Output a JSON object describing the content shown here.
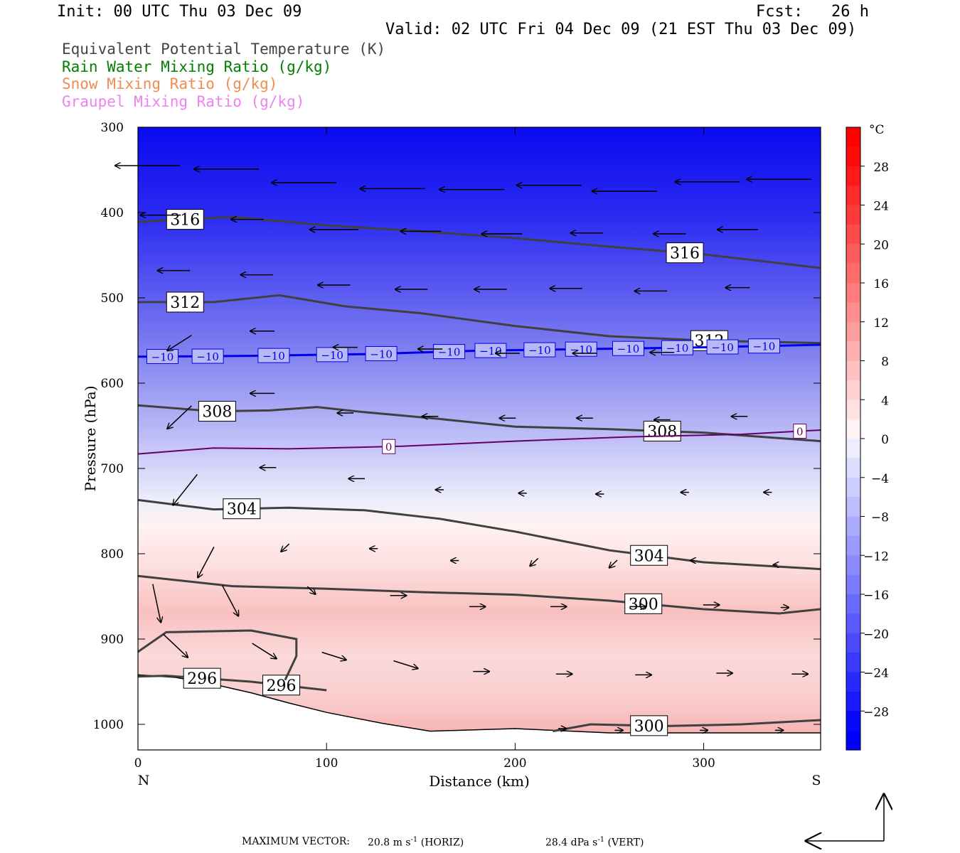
{
  "header": {
    "init": "Init: 00 UTC Thu 03 Dec 09",
    "fcst": "Fcst:   26 h",
    "valid": "Valid: 02 UTC Fri 04 Dec 09 (21 EST Thu 03 Dec 09)"
  },
  "legend": [
    {
      "label": "Equivalent Potential Temperature (K)",
      "color": "#444444"
    },
    {
      "label": "Rain Water Mixing Ratio (g/kg)",
      "color": "#008000"
    },
    {
      "label": "Snow Mixing Ratio (g/kg)",
      "color": "#f08c50"
    },
    {
      "label": "Graupel Mixing Ratio (g/kg)",
      "color": "#ee82ee"
    }
  ],
  "chart_data": {
    "type": "cross-section",
    "xlabel": "Distance (km)",
    "ylabel": "Pressure (hPa)",
    "xlim": [
      0,
      362
    ],
    "ylim": [
      1030,
      300
    ],
    "x_ticks": [
      0,
      100,
      200,
      300
    ],
    "y_ticks": [
      300,
      400,
      500,
      600,
      700,
      800,
      900,
      1000
    ],
    "endpoint_labels": {
      "left": "N",
      "right": "S"
    },
    "colorbar": {
      "unit": "°C",
      "range": [
        -32,
        32
      ],
      "ticks": [
        28,
        24,
        20,
        16,
        12,
        8,
        4,
        0,
        -4,
        -8,
        -12,
        -16,
        -20,
        -24,
        -28
      ]
    },
    "theta_e_contours": [
      {
        "value": 316,
        "label_x": [
          25,
          290
        ],
        "x": [
          0,
          50,
          100,
          150,
          200,
          250,
          300,
          362
        ],
        "p": [
          411,
          405,
          415,
          422,
          430,
          440,
          449,
          465
        ]
      },
      {
        "value": 312,
        "label_x": [
          25,
          303
        ],
        "x": [
          0,
          40,
          75,
          110,
          150,
          200,
          250,
          300,
          362
        ],
        "p": [
          505,
          505,
          497,
          510,
          518,
          533,
          545,
          550,
          553
        ]
      },
      {
        "value": 308,
        "label_x": [
          42,
          278
        ],
        "x": [
          0,
          40,
          70,
          95,
          120,
          160,
          200,
          250,
          300,
          362
        ],
        "p": [
          626,
          633,
          632,
          628,
          634,
          642,
          651,
          654,
          658,
          668
        ]
      },
      {
        "value": 304,
        "label_x": [
          55,
          271
        ],
        "x": [
          0,
          40,
          80,
          120,
          160,
          200,
          250,
          300,
          362
        ],
        "p": [
          737,
          748,
          746,
          749,
          759,
          774,
          796,
          810,
          818
        ]
      },
      {
        "value": 300,
        "label_x": [
          268
        ],
        "x": [
          0,
          50,
          100,
          150,
          200,
          250,
          300,
          340,
          362
        ],
        "p": [
          826,
          838,
          841,
          845,
          848,
          855,
          865,
          870,
          865
        ]
      },
      {
        "value": 300,
        "label_x": [
          271
        ],
        "x": [
          220,
          240,
          280,
          320,
          362
        ],
        "p": [
          1008,
          1000,
          1002,
          1000,
          995
        ]
      },
      {
        "value": 296,
        "label_x": [
          34,
          76
        ],
        "x": [
          0,
          15,
          60,
          100
        ],
        "p": [
          944,
          943,
          950,
          960
        ]
      },
      {
        "value": 296,
        "label_x": [],
        "x": [
          0,
          15,
          60,
          84,
          84,
          78
        ],
        "p": [
          915,
          892,
          890,
          900,
          920,
          948
        ]
      }
    ],
    "isotherms": [
      {
        "value": -10,
        "color": "#0000ee",
        "label_x": [
          13,
          37,
          72,
          103,
          129,
          165,
          187,
          213,
          235,
          260,
          286,
          310,
          332
        ],
        "x": [
          0,
          60,
          120,
          180,
          240,
          300,
          362
        ],
        "p": [
          569,
          568,
          566,
          562,
          560,
          558,
          555
        ]
      },
      {
        "value": 0,
        "color": "#660066",
        "label_x": [
          133,
          351
        ],
        "x": [
          0,
          40,
          80,
          140,
          200,
          260,
          320,
          362
        ],
        "p": [
          683,
          676,
          677,
          674,
          668,
          663,
          660,
          655
        ]
      }
    ],
    "terrain": {
      "x": [
        0,
        20,
        40,
        60,
        80,
        100,
        130,
        155,
        200,
        250,
        300,
        362
      ],
      "p": [
        942,
        945,
        953,
        963,
        975,
        986,
        999,
        1008,
        1005,
        1010,
        1010,
        1010
      ]
    },
    "wind_vectors": [
      [
        5,
        345,
        8,
        0
      ],
      [
        47,
        349,
        8,
        0
      ],
      [
        88,
        365,
        8,
        0
      ],
      [
        135,
        372,
        8,
        0
      ],
      [
        177,
        373,
        8,
        0
      ],
      [
        218,
        368,
        8,
        0
      ],
      [
        258,
        375,
        8,
        0
      ],
      [
        302,
        364,
        8,
        0
      ],
      [
        340,
        361,
        8,
        0
      ],
      [
        12,
        403,
        5,
        0
      ],
      [
        58,
        408,
        4,
        0
      ],
      [
        104,
        420,
        6,
        0
      ],
      [
        150,
        422,
        5,
        0
      ],
      [
        193,
        425,
        5,
        0
      ],
      [
        238,
        424,
        4,
        0
      ],
      [
        282,
        425,
        4,
        0
      ],
      [
        318,
        420,
        5,
        0
      ],
      [
        19,
        468,
        4,
        0
      ],
      [
        63,
        473,
        4,
        0
      ],
      [
        104,
        485,
        4,
        0
      ],
      [
        145,
        490,
        4,
        0
      ],
      [
        187,
        490,
        4,
        0
      ],
      [
        227,
        489,
        4,
        0
      ],
      [
        272,
        492,
        4,
        0
      ],
      [
        318,
        488,
        3,
        0
      ],
      [
        22,
        553,
        3,
        2
      ],
      [
        66,
        539,
        3,
        0
      ],
      [
        110,
        558,
        3,
        0
      ],
      [
        155,
        560,
        3,
        0
      ],
      [
        196,
        565,
        3,
        0
      ],
      [
        237,
        565,
        3,
        0
      ],
      [
        278,
        564,
        3,
        0
      ],
      [
        22,
        640,
        3,
        3
      ],
      [
        66,
        612,
        3,
        0
      ],
      [
        110,
        635,
        2,
        0
      ],
      [
        155,
        639,
        2,
        0
      ],
      [
        196,
        641,
        2,
        0
      ],
      [
        237,
        641,
        2,
        0
      ],
      [
        278,
        643,
        2,
        0
      ],
      [
        319,
        639,
        2,
        0
      ],
      [
        25,
        725,
        3,
        4
      ],
      [
        69,
        699,
        2,
        0
      ],
      [
        116,
        712,
        2,
        0
      ],
      [
        160,
        725,
        1,
        0
      ],
      [
        204,
        729,
        1,
        0
      ],
      [
        245,
        730,
        1,
        0
      ],
      [
        290,
        728,
        1,
        0
      ],
      [
        334,
        728,
        1,
        0
      ],
      [
        36,
        810,
        2,
        4
      ],
      [
        78,
        793,
        1,
        1
      ],
      [
        125,
        794,
        1,
        0
      ],
      [
        168,
        808,
        1,
        0
      ],
      [
        210,
        810,
        1,
        1
      ],
      [
        252,
        812,
        1,
        1
      ],
      [
        294,
        808,
        0.5,
        0
      ],
      [
        338,
        813,
        0.5,
        0
      ],
      [
        49,
        855,
        -2,
        4
      ],
      [
        92,
        843,
        -1,
        1
      ],
      [
        138,
        849,
        -2,
        0
      ],
      [
        180,
        862,
        -2,
        0
      ],
      [
        223,
        862,
        -2,
        0
      ],
      [
        265,
        862,
        -2,
        0
      ],
      [
        304,
        860,
        -2,
        0
      ],
      [
        343,
        863,
        -1,
        0
      ],
      [
        20,
        908,
        -3,
        3
      ],
      [
        67,
        914,
        -3,
        2
      ],
      [
        104,
        920,
        -3,
        1
      ],
      [
        142,
        930,
        -3,
        1
      ],
      [
        182,
        938,
        -2,
        0
      ],
      [
        226,
        941,
        -2,
        0
      ],
      [
        268,
        942,
        -2,
        0
      ],
      [
        311,
        940,
        -2,
        0
      ],
      [
        351,
        941,
        -2,
        0
      ],
      [
        10,
        858,
        -1,
        5
      ],
      [
        225,
        1005,
        -1,
        0
      ],
      [
        255,
        1007,
        -1,
        0
      ],
      [
        300,
        1007,
        -1,
        0
      ],
      [
        340,
        1007,
        -1,
        0
      ]
    ]
  },
  "footer": {
    "title": "MAXIMUM VECTOR:",
    "horiz_val": "20.8 m s",
    "horiz_unit": " (HORIZ)",
    "vert_val": "28.4 dPa s",
    "vert_unit": " (VERT)",
    "exp": "-1"
  }
}
